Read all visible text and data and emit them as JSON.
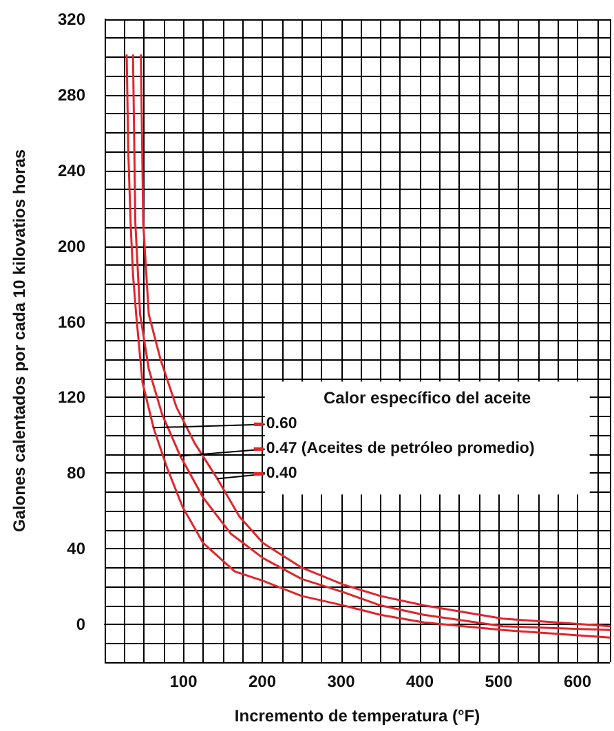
{
  "chart_data": {
    "type": "line",
    "xlabel": "Incremento de temperatura (°F)",
    "ylabel": "Galones calentados por cada 10 kilovatios horas",
    "legend_title": "Calor específico del aceite",
    "xlim": [
      0,
      641
    ],
    "xticks": [
      100,
      200,
      300,
      400,
      500,
      600
    ],
    "ylim": [
      -20,
      320
    ],
    "yticks": [
      0,
      40,
      80,
      120,
      160,
      200,
      240,
      280,
      320
    ],
    "grid": true,
    "legend": "right",
    "marker": "none",
    "line_style": "solid",
    "series": [
      {
        "name": "0.60",
        "color": "#e3242b",
        "x": [
          28,
          30,
          33,
          36,
          40,
          48,
          62,
          79,
          99,
          125,
          165,
          201,
          250,
          303,
          350,
          405,
          505,
          641
        ],
        "values": [
          301,
          250,
          212,
          185,
          164,
          128,
          104,
          83,
          62,
          43,
          28,
          23,
          15,
          10,
          5,
          1,
          -3,
          -7
        ]
      },
      {
        "name": "0.47 (Aceites de petróleo promedio)",
        "color": "#e3242b",
        "x": [
          36,
          39,
          45,
          56,
          73,
          96,
          125,
          160,
          201,
          250,
          303,
          350,
          405,
          505,
          641
        ],
        "values": [
          301,
          212,
          164,
          135,
          111,
          89,
          67,
          48,
          35,
          24,
          17,
          10,
          5,
          -1,
          -3
        ]
      },
      {
        "name": "0.40",
        "color": "#e3242b",
        "x": [
          46,
          49,
          56,
          71,
          91,
          114,
          143,
          171,
          201,
          250,
          303,
          350,
          405,
          505,
          641
        ],
        "values": [
          301,
          212,
          164,
          140,
          115,
          96,
          77,
          57,
          43,
          30,
          21,
          15,
          10,
          3,
          -1
        ]
      }
    ]
  }
}
